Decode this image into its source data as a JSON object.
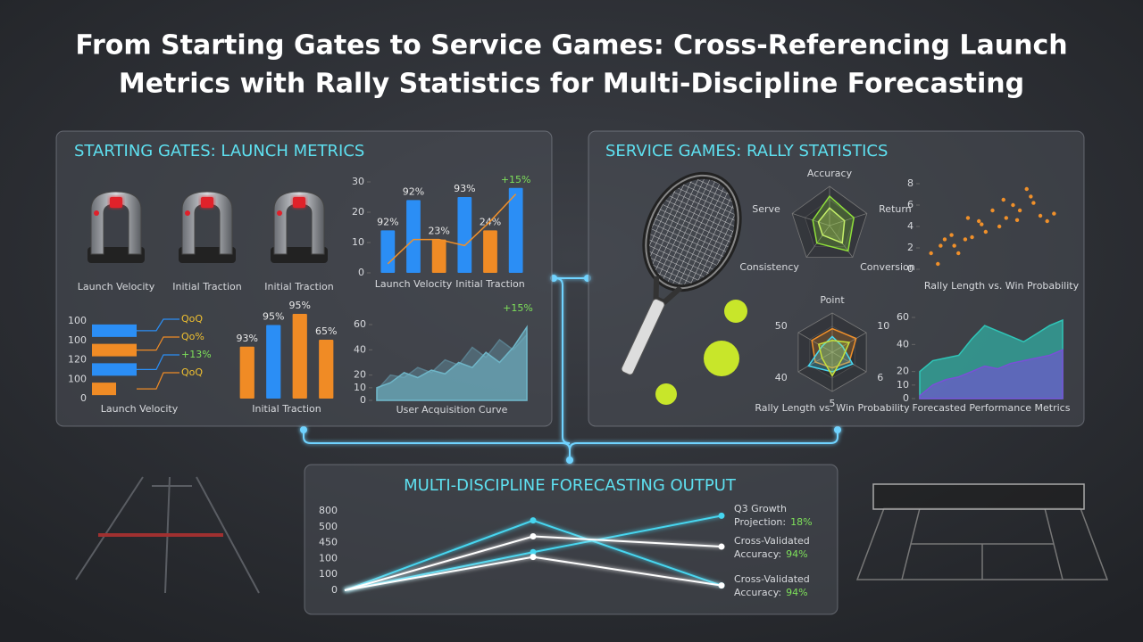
{
  "title": [
    "From Starting Gates to Service Games: Cross-Referencing Launch",
    "Metrics with Rally Statistics for Multi-Discipline Forecasting"
  ],
  "panels": [
    {
      "title": "STARTING GATES: LAUNCH METRICS",
      "gates": [
        "Launch Velocity",
        "Initial Traction",
        "Initial Traction"
      ]
    },
    {
      "title": "SERVICE GAMES: RALLY STATISTICS"
    },
    {
      "title": "MULTI-DISCIPLINE FORECASTING OUTPUT"
    }
  ],
  "chart_data": [
    {
      "type": "bar",
      "categories": [
        null,
        "Launch Velocity",
        null,
        null,
        "Initial Traction",
        null
      ],
      "values": [
        14,
        24,
        11,
        25,
        14,
        28
      ],
      "colors": [
        "#2b8ef5",
        "#2b8ef5",
        "#f08b25",
        "#2b8ef5",
        "#f08b25",
        "#2b8ef5"
      ],
      "ylim": [
        0,
        30
      ],
      "yticks": [
        0,
        10,
        20,
        30
      ],
      "line": {
        "color": "#f0902a",
        "values": [
          3,
          11,
          11,
          9,
          17,
          26
        ]
      },
      "annotations": [
        "92%",
        "92%",
        "23%",
        "93%",
        "24%",
        "+15%"
      ]
    },
    {
      "type": "hbar",
      "categories": [
        "100",
        "100",
        "120",
        "100",
        "0"
      ],
      "values": [
        100,
        100,
        100,
        54,
        null
      ],
      "colors": [
        "#2b8ef5",
        "#f08b25",
        "#2b8ef5",
        "#f08b25"
      ],
      "xlim": [
        0,
        100
      ],
      "annotations": [
        "QoQ",
        "Qo%",
        "+13%",
        "QoQ"
      ],
      "xlabel": "Launch Velocity"
    },
    {
      "type": "bar",
      "values": [
        60,
        85,
        98,
        68
      ],
      "colors": [
        "#f08b25",
        "#2b8ef5",
        "#f08b25",
        "#f08b25"
      ],
      "ylim": [
        0,
        100
      ],
      "annotations": [
        "93%",
        "95%",
        "95%",
        "65%"
      ],
      "xlabel": "Initial Traction"
    },
    {
      "type": "area",
      "ylim": [
        0,
        60
      ],
      "yticks": [
        0,
        10,
        20,
        40,
        60
      ],
      "xlabel": "User Acquisition Curve",
      "annotation": "+15%",
      "series": [
        {
          "color": "#5a7f8e",
          "values": [
            8,
            20,
            18,
            26,
            22,
            32,
            28,
            42,
            34,
            48,
            40,
            52
          ]
        },
        {
          "color": "#6fb6c8",
          "values": [
            10,
            14,
            22,
            18,
            24,
            21,
            30,
            26,
            38,
            30,
            42,
            58
          ]
        }
      ]
    },
    {
      "type": "radar",
      "axes": [
        "Accuracy",
        "Return",
        "Conversion",
        "Consistency",
        "Serve"
      ],
      "rlim": [
        0,
        1
      ],
      "series": [
        {
          "color": "#8fe03a",
          "values": [
            0.75,
            0.65,
            0.8,
            0.55,
            0.45
          ]
        },
        {
          "color": "#c6f06a",
          "values": [
            0.45,
            0.4,
            0.55,
            0.3,
            0.3
          ]
        }
      ]
    },
    {
      "type": "scatter",
      "xlim": [
        0,
        10
      ],
      "ylim": [
        0,
        8
      ],
      "yticks": [
        0,
        2,
        4,
        6,
        8
      ],
      "color": "#f0902a",
      "xlabel": "Rally Length vs. Win Probability",
      "x": [
        0.5,
        1,
        1.5,
        2,
        2.5,
        3,
        1.2,
        3.5,
        4,
        4.5,
        5,
        5.5,
        6,
        6.5,
        7,
        7.5,
        8,
        8.5,
        9,
        9.5,
        4.2,
        5.8,
        6.8,
        7.8,
        3.2,
        2.2
      ],
      "y": [
        1.5,
        0.5,
        2.8,
        3.2,
        1.5,
        2.8,
        2.2,
        3,
        4.5,
        3.5,
        5.5,
        4,
        4.8,
        6,
        5.5,
        7.5,
        6.2,
        5,
        4.5,
        5.2,
        4.2,
        6.5,
        4.6,
        6.8,
        4.8,
        2.2
      ]
    },
    {
      "type": "radar",
      "axes": [
        "Point",
        "10",
        "6",
        "5",
        "40",
        "50"
      ],
      "rlim": [
        0,
        1
      ],
      "xlabel": "Rally Length vs. Win Probability",
      "series": [
        {
          "color": "#f0902a",
          "values": [
            0.6,
            0.7,
            0.5,
            0.4,
            0.5,
            0.6
          ]
        },
        {
          "color": "#46d6f0",
          "values": [
            0.4,
            0.3,
            0.6,
            0.5,
            0.7,
            0.3
          ]
        },
        {
          "color": "#c8e03a",
          "values": [
            0.3,
            0.5,
            0.3,
            0.6,
            0.3,
            0.4
          ]
        }
      ]
    },
    {
      "type": "area",
      "ylim": [
        0,
        60
      ],
      "yticks": [
        0,
        10,
        20,
        40,
        60
      ],
      "xlabel": "Forecasted Performance Metrics",
      "series": [
        {
          "color": "#2fc6b8",
          "values": [
            20,
            28,
            30,
            32,
            44,
            54,
            50,
            46,
            42,
            48,
            54,
            58
          ]
        },
        {
          "color": "#7a4fd8",
          "values": [
            2,
            10,
            14,
            16,
            20,
            24,
            22,
            26,
            28,
            30,
            32,
            36
          ]
        }
      ]
    },
    {
      "type": "line",
      "y_categories": [
        "0",
        "100",
        "100",
        "450",
        "500",
        "800"
      ],
      "ylim": [
        0,
        5
      ],
      "series": [
        {
          "color": "#46d6f0",
          "values": [
            0,
            4.4,
            0.3
          ]
        },
        {
          "color": "#46d6f0",
          "values": [
            0,
            2.4,
            4.7
          ]
        },
        {
          "color": "#ffffff",
          "values": [
            0,
            3.4,
            2.75
          ]
        },
        {
          "color": "#ffffff",
          "values": [
            0,
            2.1,
            0.3
          ]
        }
      ],
      "annotations": [
        {
          "line1": "Q3 Growth",
          "line2": "Projection:",
          "value": "18%"
        },
        {
          "line1": "Cross-Validated",
          "line2": "Accuracy:",
          "value": "94%"
        },
        {
          "line1": "Cross-Validated",
          "line2": "Accuracy:",
          "value": "94%"
        }
      ]
    }
  ]
}
